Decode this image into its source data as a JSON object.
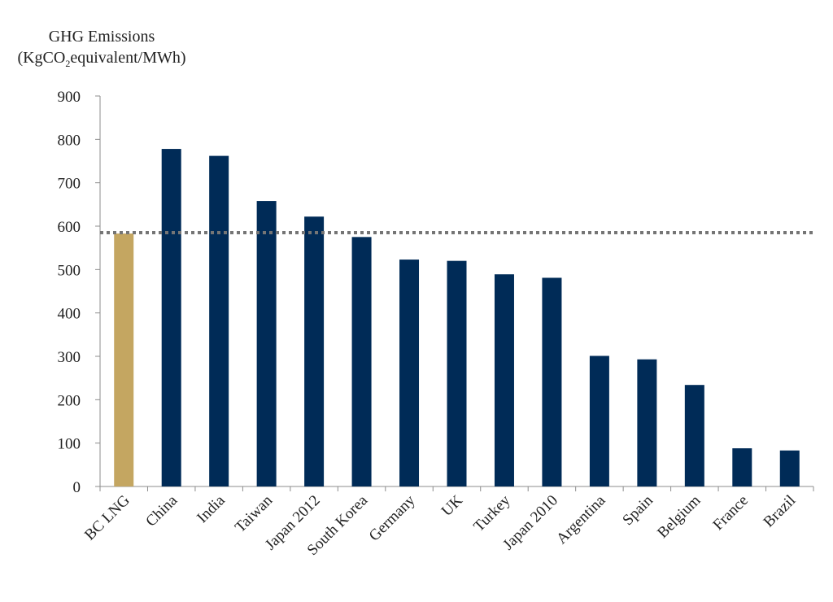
{
  "chart_data": {
    "type": "bar",
    "title": "",
    "ylabel_line1": "GHG Emissions",
    "ylabel_line2_pre": "(KgCO",
    "ylabel_line2_sub": "2",
    "ylabel_line2_post": "equivalent/MWh)",
    "xlabel": "",
    "ylim": [
      0,
      900
    ],
    "yticks": [
      0,
      100,
      200,
      300,
      400,
      500,
      600,
      700,
      800,
      900
    ],
    "grid": false,
    "categories": [
      "BC LNG",
      "China",
      "India",
      "Taiwan",
      "Japan 2012",
      "South Korea",
      "Germany",
      "UK",
      "Turkey",
      "Japan 2010",
      "Argentina",
      "Spain",
      "Belgium",
      "France",
      "Brazil"
    ],
    "values": [
      583,
      778,
      762,
      658,
      622,
      575,
      523,
      520,
      489,
      481,
      301,
      293,
      234,
      88,
      83
    ],
    "highlight_index": 0,
    "reference_line": 585,
    "colors": {
      "bar": "#002b57",
      "highlight": "#c4a661",
      "reference_line": "#757575",
      "axis": "#8c8c8c"
    }
  }
}
